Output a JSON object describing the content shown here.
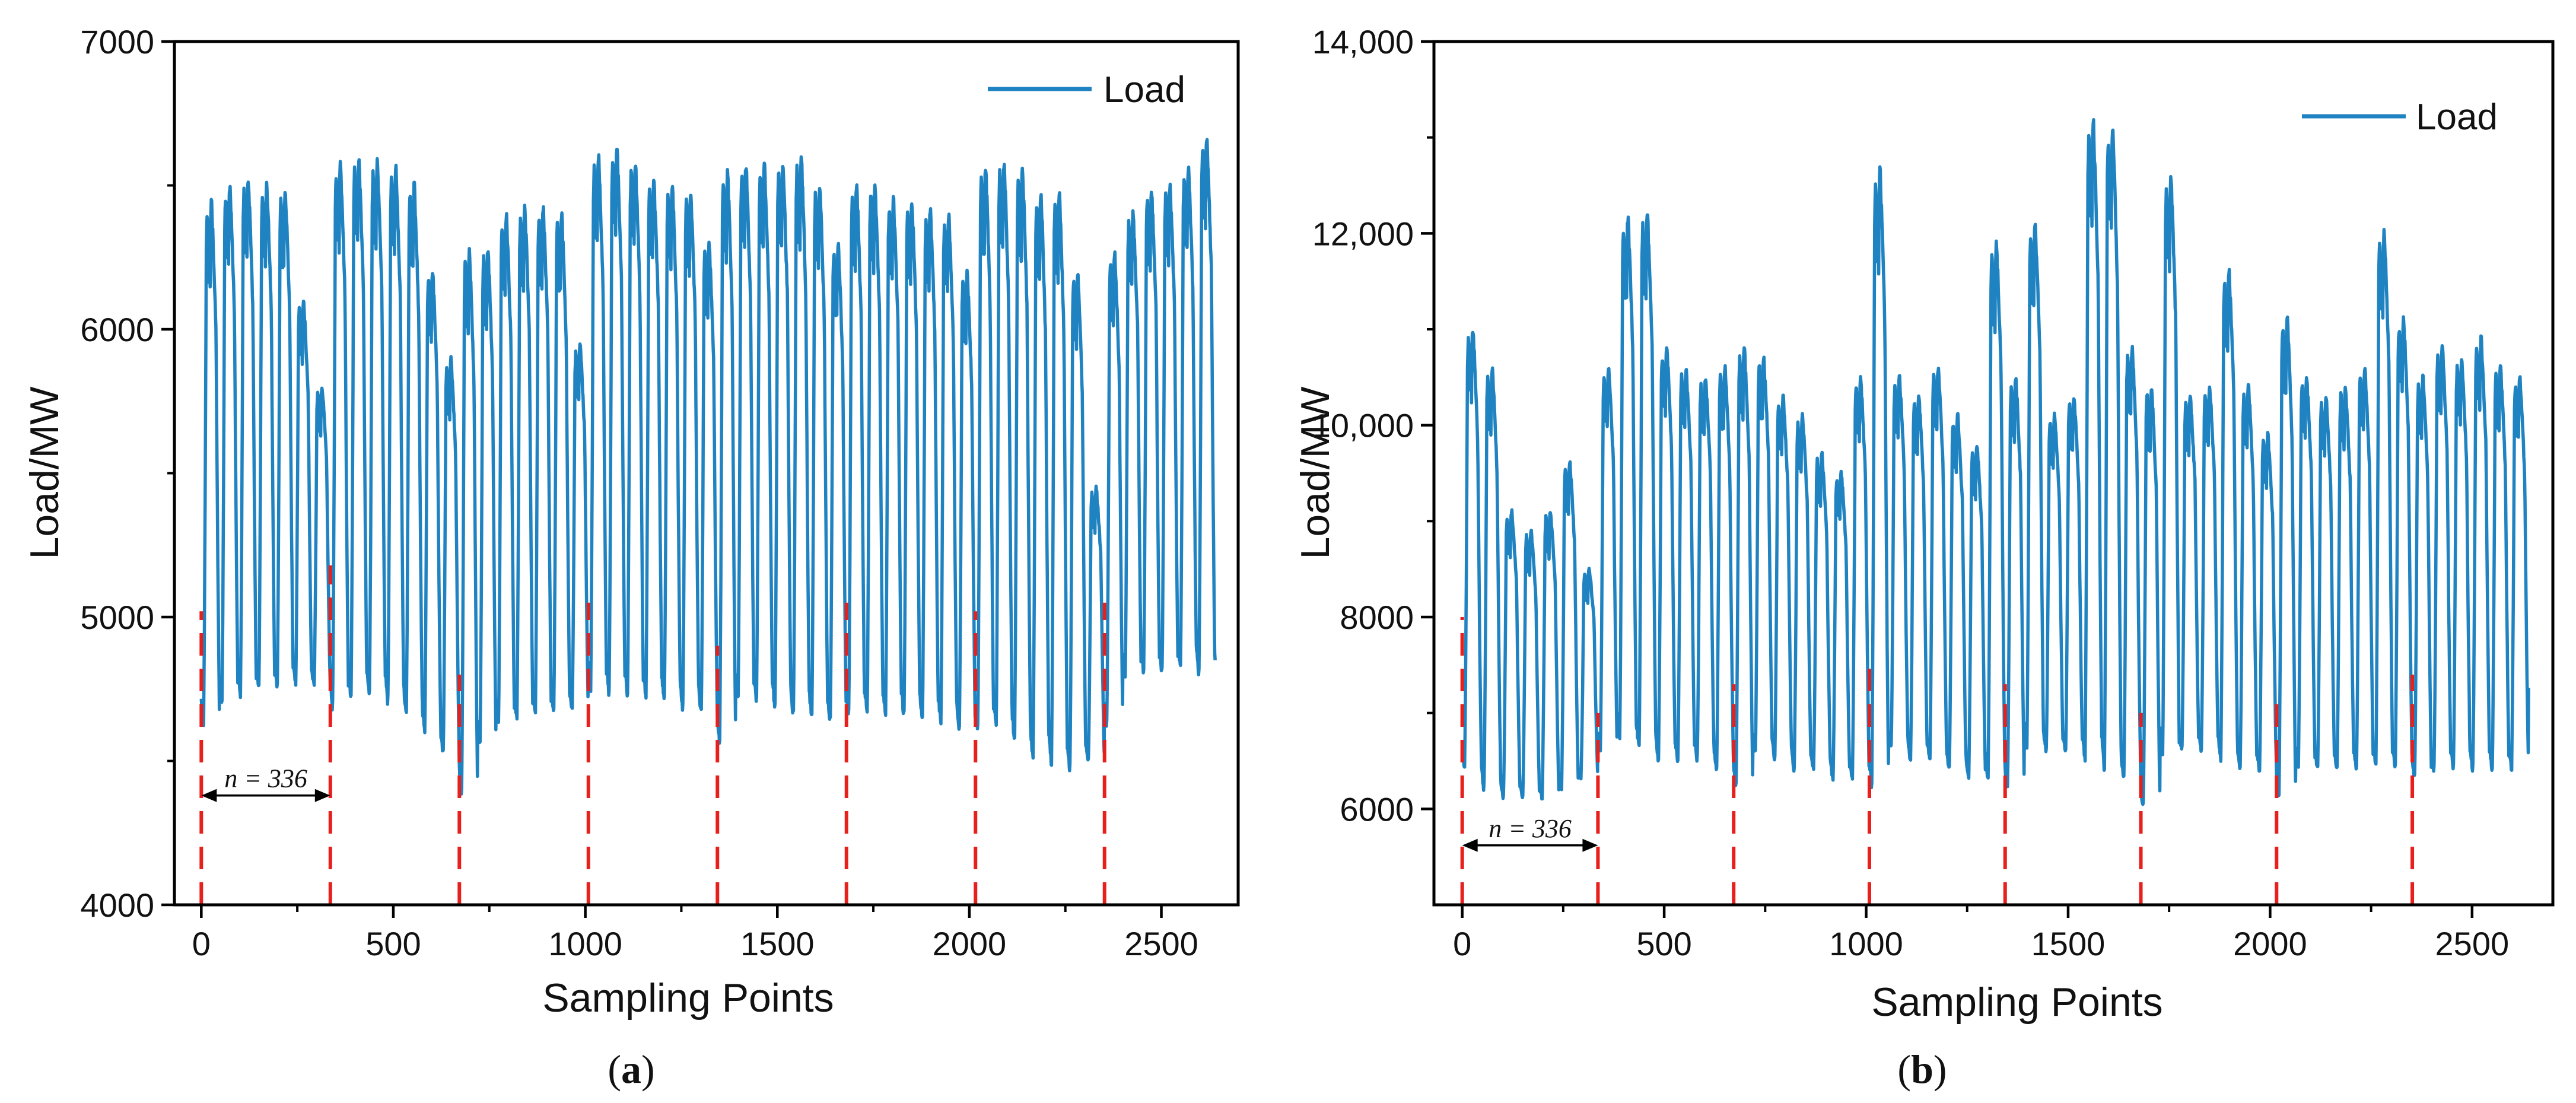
{
  "chart_data": [
    {
      "type": "line",
      "panel_label": "a",
      "xlabel": "Sampling Points",
      "ylabel": "Load/MW",
      "xlim": [
        -70,
        2700
      ],
      "ylim": [
        4000,
        7000
      ],
      "xticks": [
        0,
        500,
        1000,
        1500,
        2000,
        2500
      ],
      "xtick_labels": [
        "0",
        "500",
        "1000",
        "1500",
        "2000",
        "2500"
      ],
      "yticks": [
        4000,
        5000,
        6000,
        7000
      ],
      "ytick_labels": [
        "4000",
        "5000",
        "6000",
        "7000"
      ],
      "legend": {
        "label": "Load",
        "position": "top-right"
      },
      "line_color": "#1f83c2",
      "period_marker_color": "#e8201c",
      "x_max": 2640,
      "period": 336,
      "period_marker_x": [
        0,
        336,
        672,
        1008,
        1344,
        1680,
        2016,
        2352
      ],
      "period_marker_top": [
        5020,
        5180,
        4800,
        5050,
        4900,
        5050,
        5020,
        5050
      ],
      "period_annotation": {
        "text": "n = 336",
        "x_start": 0,
        "x_end": 336,
        "y": 4380
      },
      "weekly_peaks": [
        [
          6440,
          6500,
          6520,
          6500,
          6480,
          6100,
          5800
        ],
        [
          6580,
          6590,
          6580,
          6560,
          6500,
          6200,
          5900
        ],
        [
          6270,
          6280,
          6400,
          6420,
          6420,
          6400,
          5950
        ],
        [
          6600,
          6630,
          6580,
          6520,
          6500,
          6480,
          6300
        ],
        [
          6550,
          6570,
          6570,
          6580,
          6600,
          6500,
          6300
        ],
        [
          6500,
          6500,
          6450,
          6440,
          6420,
          6400,
          6200
        ],
        [
          6560,
          6580,
          6560,
          6470,
          6480,
          6200,
          5450
        ],
        [
          6260,
          6400,
          6480,
          6500,
          6560,
          6660,
          6000
        ]
      ],
      "weekly_troughs": [
        [
          4620,
          4700,
          4720,
          4740,
          4750,
          4760,
          4760
        ],
        [
          4680,
          4720,
          4720,
          4700,
          4650,
          4600,
          4520
        ],
        [
          4380,
          4550,
          4620,
          4640,
          4650,
          4660,
          4670
        ],
        [
          4740,
          4730,
          4720,
          4720,
          4700,
          4680,
          4660
        ],
        [
          4560,
          4700,
          4700,
          4680,
          4650,
          4640,
          4630
        ],
        [
          4650,
          4660,
          4660,
          4650,
          4640,
          4630,
          4600
        ],
        [
          4600,
          4620,
          4560,
          4500,
          4480,
          4470,
          4500
        ],
        [
          4620,
          4780,
          4800,
          4800,
          4820,
          4800,
          4780
        ]
      ]
    },
    {
      "type": "line",
      "panel_label": "b",
      "xlabel": "Sampling Points",
      "ylabel": "Load/MW",
      "xlim": [
        -70,
        2700
      ],
      "ylim": [
        5000,
        14000
      ],
      "xticks": [
        0,
        500,
        1000,
        1500,
        2000,
        2500
      ],
      "xtick_labels": [
        "0",
        "500",
        "1000",
        "1500",
        "2000",
        "2500"
      ],
      "yticks": [
        6000,
        8000,
        10000,
        12000,
        14000
      ],
      "ytick_labels": [
        "6000",
        "8000",
        "10,000",
        "12,000",
        "14,000"
      ],
      "legend": {
        "label": "Load",
        "position": "top-right"
      },
      "line_color": "#1f83c2",
      "period_marker_color": "#e8201c",
      "x_max": 2640,
      "period": 336,
      "period_marker_x": [
        0,
        336,
        672,
        1008,
        1344,
        1680,
        2016,
        2352
      ],
      "period_marker_top": [
        8000,
        7000,
        7300,
        7500,
        7300,
        7000,
        7100,
        7400
      ],
      "period_annotation": {
        "text": "n = 336",
        "x_start": 0,
        "x_end": 336,
        "y": 5620
      },
      "weekly_peaks": [
        [
          11000,
          10600,
          9100,
          8900,
          9100,
          9600,
          8500
        ],
        [
          10600,
          12150,
          12200,
          10800,
          10600,
          10500,
          10600
        ],
        [
          10800,
          10700,
          10300,
          10100,
          9700,
          9500,
          10500
        ],
        [
          12650,
          10500,
          10300,
          10600,
          10100,
          9800,
          11900
        ],
        [
          10500,
          12100,
          10100,
          10300,
          13150,
          13100,
          10800
        ],
        [
          10400,
          12600,
          10300,
          10400,
          11600,
          10400,
          9900
        ],
        [
          11100,
          10500,
          10300,
          10400,
          10600,
          12000,
          11100
        ],
        [
          10500,
          10800,
          10700,
          10900,
          10600,
          10500,
          11000
        ]
      ],
      "weekly_troughs": [
        [
          6400,
          6200,
          6100,
          6100,
          6100,
          6200,
          6300
        ],
        [
          6600,
          6700,
          6600,
          6500,
          6500,
          6500,
          6400
        ],
        [
          6200,
          6600,
          6500,
          6400,
          6400,
          6300,
          6300
        ],
        [
          6200,
          6600,
          6500,
          6500,
          6400,
          6300,
          6300
        ],
        [
          6200,
          6600,
          6600,
          6600,
          6500,
          6400,
          6300
        ],
        [
          6000,
          6500,
          6600,
          6600,
          6500,
          6400,
          6400
        ],
        [
          6100,
          6400,
          6400,
          6400,
          6400,
          6400,
          6400
        ],
        [
          6300,
          6400,
          6400,
          6400,
          6400,
          6400,
          7100
        ]
      ]
    }
  ]
}
